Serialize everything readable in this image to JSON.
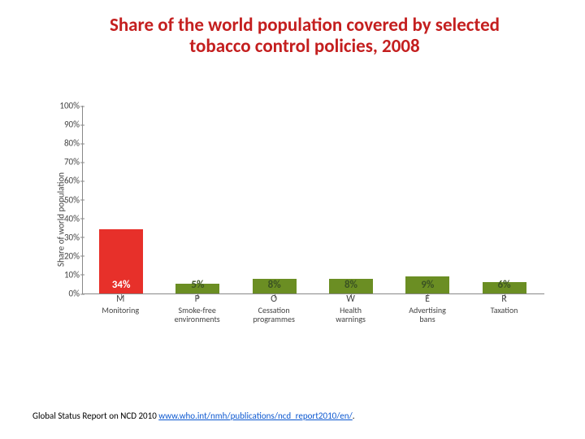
{
  "title": {
    "line1": "Share of the world population covered by selected",
    "line2": "tobacco control policies, 2008",
    "fontsize": 23,
    "color": "#c41f1f"
  },
  "chart": {
    "type": "bar",
    "ylabel": "Share of world population",
    "ylabel_fontsize": 11,
    "ylim": [
      0,
      100
    ],
    "ytick_step": 10,
    "ytick_suffix": "%",
    "ytick_fontsize": 11,
    "axis_color": "#888888",
    "background_color": "#ffffff",
    "bars": [
      {
        "letter": "M",
        "name": "Monitoring",
        "value": 34,
        "color": "#e7302a",
        "label": "34%"
      },
      {
        "letter": "P",
        "name": "Smoke-free\nenvironments",
        "value": 5,
        "color": "#6b8e23",
        "label": "5%"
      },
      {
        "letter": "O",
        "name": "Cessation\nprogrammes",
        "value": 8,
        "color": "#6b8e23",
        "label": "8%"
      },
      {
        "letter": "W",
        "name": "Health\nwarnings",
        "value": 8,
        "color": "#6b8e23",
        "label": "8%"
      },
      {
        "letter": "E",
        "name": "Advertising\nbans",
        "value": 9,
        "color": "#6b8e23",
        "label": "9%"
      },
      {
        "letter": "R",
        "name": "Taxation",
        "value": 6,
        "color": "#6b8e23",
        "label": "6%"
      }
    ],
    "bar_width_pct": 9.5,
    "col_width_pct": 16.6,
    "xlabel_fontsize_letter": 12,
    "xlabel_fontsize_name": 10,
    "value_label_fontsize": 13,
    "value_label_color_first": "#ffffff",
    "value_label_color_rest": "#3b5323"
  },
  "footnote": {
    "prefix": "Global Status Report on NCD 2010 ",
    "link_text": "www.who.int/nmh/publications/ncd_report2010/en/",
    "suffix": ".",
    "fontsize": 11,
    "color": "#000000",
    "link_color": "#0b57d0"
  }
}
